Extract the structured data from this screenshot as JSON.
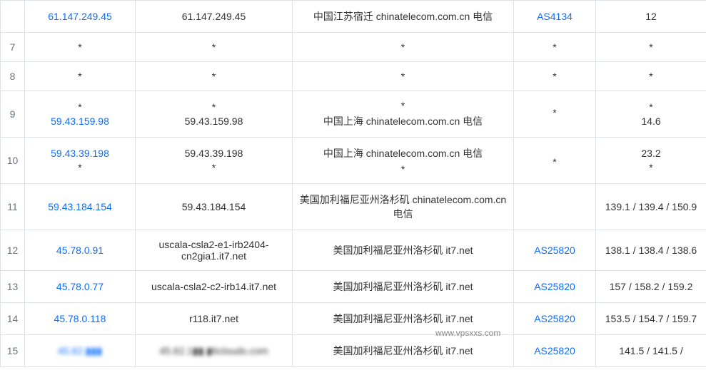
{
  "colors": {
    "link": "#0d6efd",
    "muted": "#6c757d",
    "border": "#dee2e6",
    "text": "#333333",
    "background": "#ffffff"
  },
  "watermark": "www.vpsxxs.com",
  "rows": [
    {
      "hop": "",
      "lines": [
        {
          "ip": "61.147.249.45",
          "ip_link": true,
          "host": "61.147.249.45",
          "loc": "中国江苏宿迁 chinatelecom.com.cn 电信",
          "as": "AS4134",
          "as_link": true,
          "lat": "12"
        }
      ]
    },
    {
      "hop": "7",
      "lines": [
        {
          "ip": "*",
          "ip_link": false,
          "host": "*",
          "loc": "*",
          "as": "*",
          "as_link": false,
          "lat": "*"
        }
      ]
    },
    {
      "hop": "8",
      "lines": [
        {
          "ip": "*",
          "ip_link": false,
          "host": "*",
          "loc": "*",
          "as": "*",
          "as_link": false,
          "lat": "*"
        }
      ]
    },
    {
      "hop": "9",
      "lines": [
        {
          "ip": "*",
          "ip_link": false,
          "host": "*",
          "loc": "*",
          "as": "*",
          "as_link": false,
          "lat": "*"
        },
        {
          "ip": "59.43.159.98",
          "ip_link": true,
          "host": "59.43.159.98",
          "loc": "中国上海 chinatelecom.com.cn 电信",
          "as": "",
          "as_link": false,
          "lat": "14.6"
        }
      ]
    },
    {
      "hop": "10",
      "lines": [
        {
          "ip": "59.43.39.198",
          "ip_link": true,
          "host": "59.43.39.198",
          "loc": "中国上海 chinatelecom.com.cn 电信",
          "as": "",
          "as_link": false,
          "lat": "23.2"
        },
        {
          "ip": "*",
          "ip_link": false,
          "host": "*",
          "loc": "*",
          "as": "*",
          "as_link": false,
          "lat": "*"
        }
      ]
    },
    {
      "hop": "11",
      "lines": [
        {
          "ip": "59.43.184.154",
          "ip_link": true,
          "host": "59.43.184.154",
          "loc": "美国加利福尼亚州洛杉矶 chinatelecom.com.cn 电信",
          "as": "",
          "as_link": false,
          "lat": "139.1 / 139.4 / 150.9"
        }
      ]
    },
    {
      "hop": "12",
      "lines": [
        {
          "ip": "45.78.0.91",
          "ip_link": true,
          "host": "uscala-csla2-e1-irb2404-cn2gia1.it7.net",
          "loc": "美国加利福尼亚州洛杉矶 it7.net",
          "as": "AS25820",
          "as_link": true,
          "lat": "138.1 / 138.4 / 138.6"
        }
      ]
    },
    {
      "hop": "13",
      "lines": [
        {
          "ip": "45.78.0.77",
          "ip_link": true,
          "host": "uscala-csla2-c2-irb14.it7.net",
          "loc": "美国加利福尼亚州洛杉矶 it7.net",
          "as": "AS25820",
          "as_link": true,
          "lat": "157 / 158.2 / 159.2"
        }
      ]
    },
    {
      "hop": "14",
      "lines": [
        {
          "ip": "45.78.0.118",
          "ip_link": true,
          "host": "r118.it7.net",
          "loc": "美国加利福尼亚州洛杉矶 it7.net",
          "as": "AS25820",
          "as_link": true,
          "lat": "153.5 / 154.7 / 159.7"
        }
      ]
    },
    {
      "hop": "15",
      "lines": [
        {
          "ip": "45.62.▮▮▮",
          "ip_link": true,
          "ip_blur": true,
          "host": "45.62.1▮▮.▮6clouds.com",
          "host_blur": true,
          "loc": "美国加利福尼亚州洛杉矶 it7.net",
          "as": "AS25820",
          "as_link": true,
          "lat": "141.5 / 141.5 /"
        }
      ]
    }
  ]
}
